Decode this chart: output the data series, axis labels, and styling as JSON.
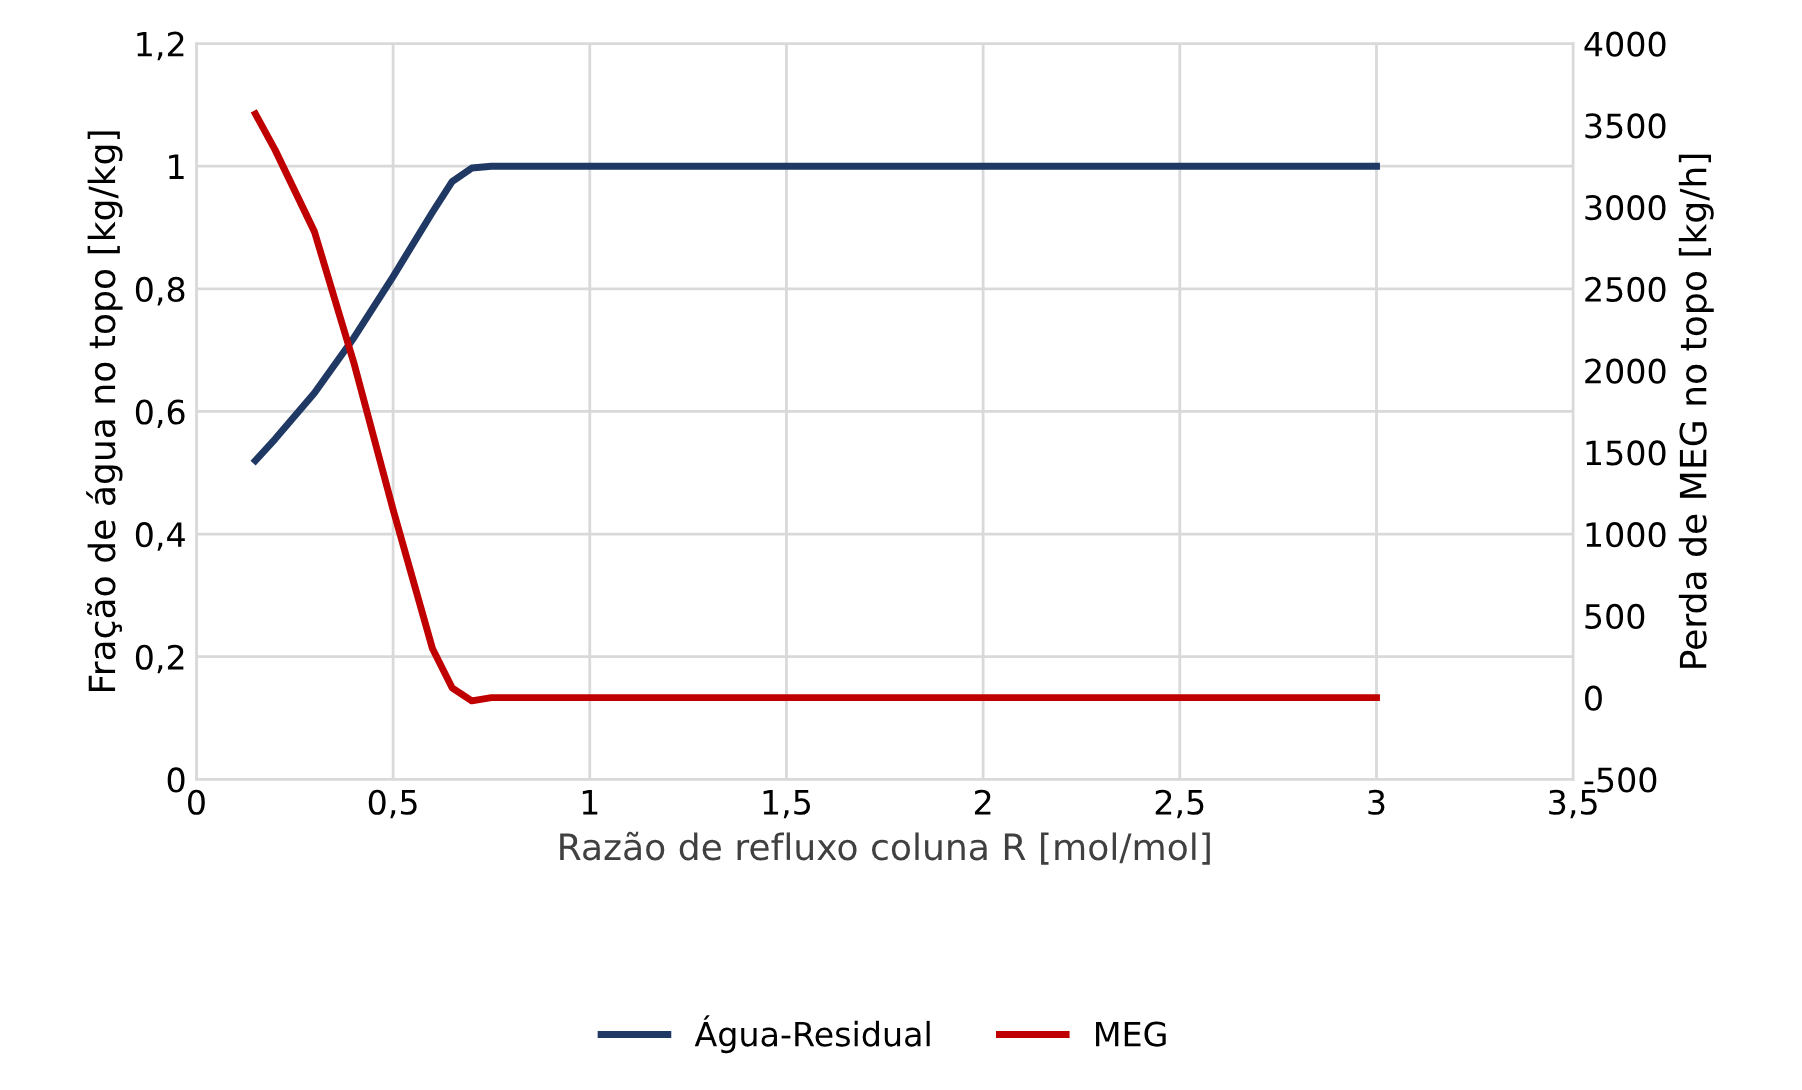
{
  "chart_data": {
    "type": "line",
    "xlabel": "Razão de refluxo coluna R [mol/mol]",
    "ylabel": "Fração de água no topo [kg/kg]",
    "y2label": "Perda de MEG no topo [kg/h]",
    "x": [
      0.15,
      0.2,
      0.3,
      0.4,
      0.5,
      0.6,
      0.65,
      0.7,
      0.75,
      1,
      2,
      3
    ],
    "series": [
      {
        "name": "Água-Residual",
        "color": "#203864",
        "values": [
          0.52,
          0.555,
          0.63,
          0.72,
          0.82,
          0.925,
          0.975,
          0.997,
          1.0,
          1.0,
          1.0,
          1.0
        ]
      },
      {
        "name": "MEG",
        "color": "#c00000",
        "axis": "y2",
        "values": [
          3570,
          3350,
          2850,
          2050,
          1150,
          300,
          60,
          -20,
          0,
          0,
          0,
          0
        ]
      }
    ],
    "xlim": [
      0,
      3.5
    ],
    "xticks": [
      0,
      {
        "value": 0.5,
        "label": "0,5"
      },
      1,
      {
        "value": 1.5,
        "label": "1,5"
      },
      2,
      {
        "value": 2.5,
        "label": "2,5"
      },
      3,
      {
        "value": 3.5,
        "label": "3,5"
      }
    ],
    "ylim": [
      0,
      1.2
    ],
    "yticks": [
      0,
      {
        "value": 0.2,
        "label": "0,2"
      },
      {
        "value": 0.4,
        "label": "0,4"
      },
      {
        "value": 0.6,
        "label": "0,6"
      },
      {
        "value": 0.8,
        "label": "0,8"
      },
      1,
      {
        "value": 1.2,
        "label": "1,2"
      }
    ],
    "y2lim": [
      -500,
      4000
    ],
    "y2ticks": [
      -500,
      0,
      500,
      1000,
      1500,
      2000,
      2500,
      3000,
      3500,
      4000
    ],
    "grid": true,
    "legend": "bottom",
    "marker": "none",
    "line_style": "solid"
  }
}
